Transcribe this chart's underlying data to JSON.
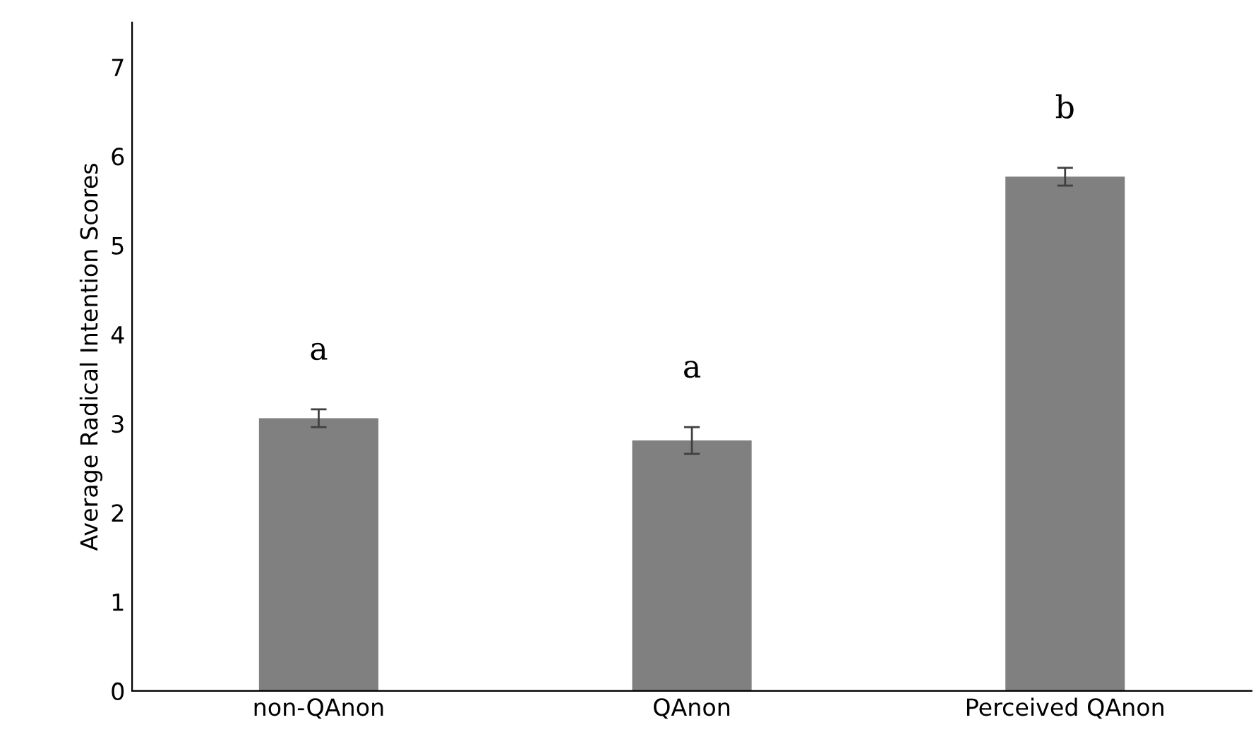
{
  "chart_data": {
    "type": "bar",
    "ylabel": "Average Radical Intention Scores",
    "categories": [
      "non-QAnon",
      "QAnon",
      "Perceived QAnon"
    ],
    "values": [
      3.06,
      2.81,
      5.77
    ],
    "errors": [
      0.1,
      0.15,
      0.1
    ],
    "color": "#808080",
    "ylim": [
      0,
      7.5
    ],
    "yticks": [
      0,
      1,
      2,
      3,
      4,
      5,
      6,
      7
    ],
    "grid": false,
    "legend": false,
    "annotations": [
      "a",
      "a",
      "b"
    ]
  }
}
